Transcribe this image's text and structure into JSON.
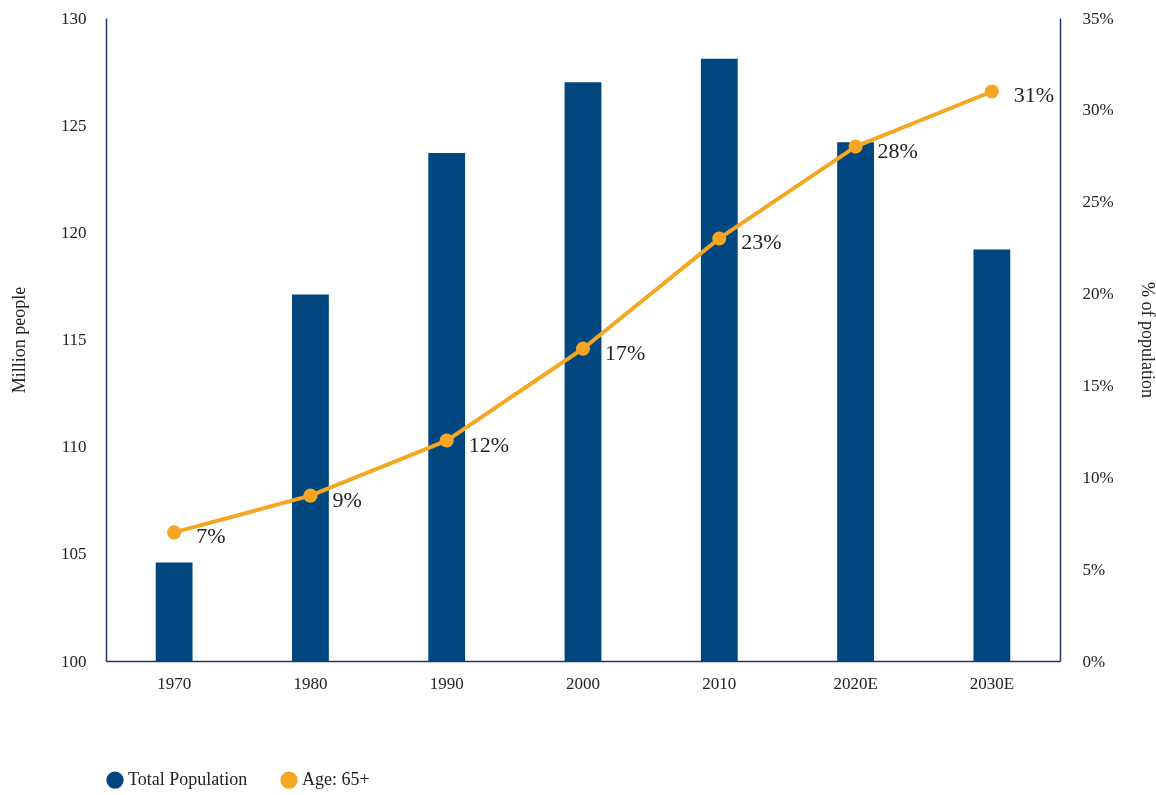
{
  "chart_data": {
    "type": "bar",
    "categories": [
      "1970",
      "1980",
      "1990",
      "2000",
      "2010",
      "2020E",
      "2030E"
    ],
    "ylabel": "Million people",
    "y2label": "% of population",
    "ylim": [
      100,
      130
    ],
    "yticks": [
      100,
      105,
      110,
      115,
      120,
      125,
      130
    ],
    "y2lim": [
      0,
      35
    ],
    "y2ticks": [
      {
        "value": 0,
        "label": "0%"
      },
      {
        "value": 5,
        "label": "5%"
      },
      {
        "value": 10,
        "label": "10%"
      },
      {
        "value": 15,
        "label": "15%"
      },
      {
        "value": 20,
        "label": "20%"
      },
      {
        "value": 25,
        "label": "25%"
      },
      {
        "value": 30,
        "label": "30%"
      },
      {
        "value": 35,
        "label": "35%"
      }
    ],
    "legend": "bottom",
    "marker": "circle",
    "series": [
      {
        "name": "Total Population",
        "color": "#00467f",
        "values": [
          104.6,
          117.1,
          123.7,
          127.0,
          128.1,
          124.2,
          119.2
        ]
      },
      {
        "name": "Age: 65+",
        "type": "line",
        "axis": "y2",
        "color": "#f5a623",
        "values": [
          7,
          9,
          12,
          17,
          23,
          28,
          31
        ],
        "value_labels": [
          "7%",
          "9%",
          "12%",
          "17%",
          "23%",
          "28%",
          "31%"
        ]
      }
    ]
  }
}
